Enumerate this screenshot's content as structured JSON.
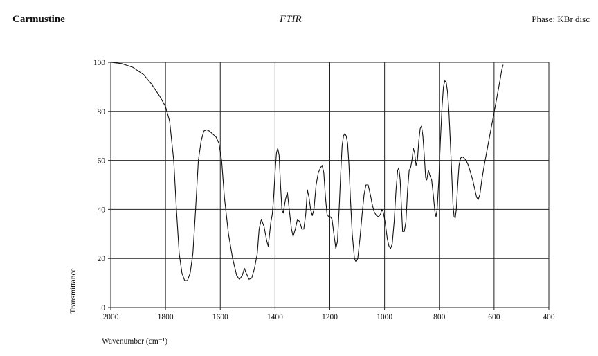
{
  "header": {
    "compound": "Carmustine",
    "method": "FTIR",
    "phase": "Phase: KBr disc"
  },
  "chart_data": {
    "type": "line",
    "title": "",
    "xlabel": "Wavenumber (cm⁻¹)",
    "ylabel": "Transmittance",
    "xlim": [
      2000,
      400
    ],
    "ylim": [
      0,
      100
    ],
    "x_reversed": true,
    "grid": true,
    "x_ticks": [
      2000,
      1800,
      1600,
      1400,
      1200,
      1000,
      800,
      600,
      400
    ],
    "y_ticks": [
      0,
      20,
      40,
      60,
      80,
      100
    ],
    "series": [
      {
        "color": "#111111",
        "points": [
          [
            2000,
            100
          ],
          [
            1960,
            99.5
          ],
          [
            1920,
            98
          ],
          [
            1880,
            95
          ],
          [
            1850,
            91
          ],
          [
            1820,
            86
          ],
          [
            1800,
            82
          ],
          [
            1785,
            76
          ],
          [
            1770,
            60
          ],
          [
            1760,
            40
          ],
          [
            1750,
            22
          ],
          [
            1740,
            14
          ],
          [
            1730,
            11
          ],
          [
            1720,
            11
          ],
          [
            1710,
            14
          ],
          [
            1700,
            22
          ],
          [
            1690,
            40
          ],
          [
            1680,
            60
          ],
          [
            1670,
            68
          ],
          [
            1660,
            72
          ],
          [
            1650,
            72.5
          ],
          [
            1640,
            72
          ],
          [
            1625,
            70.5
          ],
          [
            1615,
            69.5
          ],
          [
            1605,
            67
          ],
          [
            1595,
            60
          ],
          [
            1585,
            45
          ],
          [
            1570,
            30
          ],
          [
            1555,
            20
          ],
          [
            1540,
            13
          ],
          [
            1530,
            11.5
          ],
          [
            1520,
            13
          ],
          [
            1512,
            16
          ],
          [
            1505,
            14
          ],
          [
            1495,
            11.5
          ],
          [
            1485,
            12
          ],
          [
            1475,
            16
          ],
          [
            1465,
            22
          ],
          [
            1458,
            32
          ],
          [
            1450,
            36
          ],
          [
            1440,
            33
          ],
          [
            1430,
            27
          ],
          [
            1425,
            25
          ],
          [
            1420,
            30
          ],
          [
            1415,
            35
          ],
          [
            1410,
            38
          ],
          [
            1405,
            45
          ],
          [
            1400,
            55
          ],
          [
            1395,
            63
          ],
          [
            1390,
            65
          ],
          [
            1385,
            62
          ],
          [
            1380,
            50
          ],
          [
            1375,
            40
          ],
          [
            1370,
            38.5
          ],
          [
            1362,
            44
          ],
          [
            1355,
            47
          ],
          [
            1348,
            40
          ],
          [
            1340,
            32
          ],
          [
            1334,
            29
          ],
          [
            1326,
            32
          ],
          [
            1318,
            36
          ],
          [
            1310,
            35
          ],
          [
            1302,
            32
          ],
          [
            1295,
            32
          ],
          [
            1288,
            38
          ],
          [
            1282,
            48
          ],
          [
            1276,
            45
          ],
          [
            1270,
            40
          ],
          [
            1264,
            37.5
          ],
          [
            1258,
            40
          ],
          [
            1250,
            50
          ],
          [
            1242,
            55
          ],
          [
            1234,
            57
          ],
          [
            1228,
            58
          ],
          [
            1222,
            55
          ],
          [
            1216,
            45
          ],
          [
            1210,
            38
          ],
          [
            1204,
            37
          ],
          [
            1198,
            37
          ],
          [
            1192,
            36
          ],
          [
            1185,
            30
          ],
          [
            1178,
            24
          ],
          [
            1172,
            27
          ],
          [
            1165,
            42
          ],
          [
            1160,
            55
          ],
          [
            1155,
            66
          ],
          [
            1150,
            70
          ],
          [
            1145,
            71
          ],
          [
            1140,
            70
          ],
          [
            1135,
            67
          ],
          [
            1130,
            58
          ],
          [
            1125,
            45
          ],
          [
            1118,
            30
          ],
          [
            1110,
            20
          ],
          [
            1104,
            18.5
          ],
          [
            1098,
            20
          ],
          [
            1090,
            28
          ],
          [
            1082,
            38
          ],
          [
            1075,
            46
          ],
          [
            1068,
            50
          ],
          [
            1060,
            50
          ],
          [
            1052,
            46
          ],
          [
            1045,
            42
          ],
          [
            1038,
            39
          ],
          [
            1030,
            37.5
          ],
          [
            1022,
            37
          ],
          [
            1015,
            38
          ],
          [
            1010,
            40
          ],
          [
            1005,
            39
          ],
          [
            998,
            35
          ],
          [
            990,
            28
          ],
          [
            984,
            25
          ],
          [
            978,
            24
          ],
          [
            972,
            26
          ],
          [
            965,
            35
          ],
          [
            958,
            48
          ],
          [
            952,
            56
          ],
          [
            948,
            57
          ],
          [
            943,
            52
          ],
          [
            938,
            40
          ],
          [
            934,
            31
          ],
          [
            928,
            31
          ],
          [
            922,
            35
          ],
          [
            916,
            48
          ],
          [
            910,
            56
          ],
          [
            905,
            57
          ],
          [
            900,
            60
          ],
          [
            895,
            65
          ],
          [
            890,
            63
          ],
          [
            885,
            58
          ],
          [
            880,
            60
          ],
          [
            875,
            68
          ],
          [
            870,
            73
          ],
          [
            865,
            74
          ],
          [
            860,
            70
          ],
          [
            855,
            62
          ],
          [
            850,
            53
          ],
          [
            846,
            52
          ],
          [
            840,
            56
          ],
          [
            835,
            54
          ],
          [
            828,
            52
          ],
          [
            822,
            46
          ],
          [
            816,
            39
          ],
          [
            812,
            37
          ],
          [
            808,
            40
          ],
          [
            802,
            52
          ],
          [
            796,
            68
          ],
          [
            790,
            82
          ],
          [
            785,
            90
          ],
          [
            780,
            92.5
          ],
          [
            775,
            92
          ],
          [
            770,
            88
          ],
          [
            765,
            80
          ],
          [
            760,
            68
          ],
          [
            755,
            55
          ],
          [
            750,
            42
          ],
          [
            746,
            37
          ],
          [
            742,
            36.5
          ],
          [
            738,
            40
          ],
          [
            733,
            50
          ],
          [
            728,
            58
          ],
          [
            722,
            61
          ],
          [
            716,
            61.5
          ],
          [
            710,
            61
          ],
          [
            702,
            60
          ],
          [
            694,
            58
          ],
          [
            686,
            55
          ],
          [
            678,
            52
          ],
          [
            670,
            48
          ],
          [
            664,
            45
          ],
          [
            658,
            44
          ],
          [
            652,
            46
          ],
          [
            645,
            52
          ],
          [
            636,
            58
          ],
          [
            626,
            64
          ],
          [
            616,
            70
          ],
          [
            606,
            76
          ],
          [
            596,
            82
          ],
          [
            586,
            88
          ],
          [
            578,
            93
          ],
          [
            572,
            97
          ],
          [
            567,
            99
          ]
        ]
      }
    ]
  }
}
